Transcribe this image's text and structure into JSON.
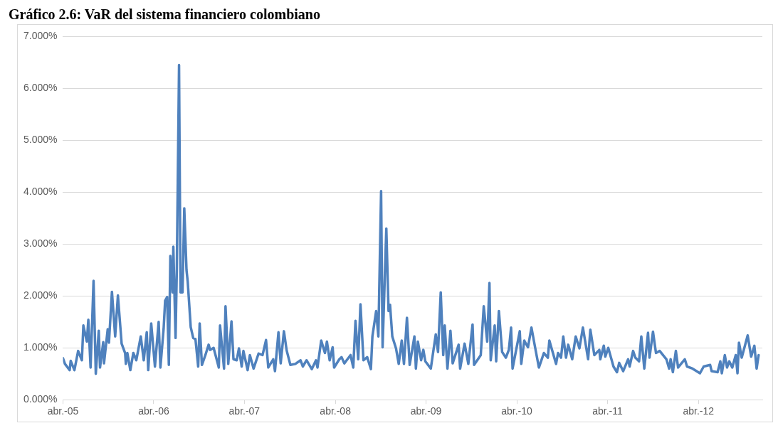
{
  "chart_data": {
    "type": "line",
    "title": "Gráfico 2.6: VaR del sistema financiero colombiano",
    "series": [
      {
        "color": "#4f81bd",
        "x": [
          "2005-04-01",
          "2005-04-09",
          "2005-04-28",
          "2005-05-02",
          "2005-05-17",
          "2005-06-01",
          "2005-06-16",
          "2005-06-22",
          "2005-07-06",
          "2005-07-12",
          "2005-07-21",
          "2005-08-02",
          "2005-08-11",
          "2005-08-23",
          "2005-08-28",
          "2005-09-10",
          "2005-09-13",
          "2005-09-28",
          "2005-10-03",
          "2005-10-15",
          "2005-10-28",
          "2005-11-08",
          "2005-11-23",
          "2005-12-07",
          "2005-12-10",
          "2005-12-16",
          "2005-12-28",
          "2006-01-09",
          "2006-01-21",
          "2006-02-08",
          "2006-02-20",
          "2006-03-04",
          "2006-03-10",
          "2006-03-22",
          "2006-04-06",
          "2006-04-21",
          "2006-04-28",
          "2006-05-11",
          "2006-05-17",
          "2006-05-25",
          "2006-06-01",
          "2006-06-07",
          "2006-06-16",
          "2006-06-19",
          "2006-06-28",
          "2006-07-03",
          "2006-07-12",
          "2006-07-18",
          "2006-07-26",
          "2006-08-02",
          "2006-08-11",
          "2006-08-16",
          "2006-08-28",
          "2006-09-07",
          "2006-09-16",
          "2006-09-27",
          "2006-10-03",
          "2006-10-12",
          "2006-10-26",
          "2006-11-08",
          "2006-11-14",
          "2006-11-28",
          "2006-12-19",
          "2006-12-24",
          "2007-01-09",
          "2007-01-15",
          "2007-01-26",
          "2007-02-08",
          "2007-02-16",
          "2007-03-01",
          "2007-03-10",
          "2007-03-21",
          "2007-03-28",
          "2007-04-14",
          "2007-04-23",
          "2007-05-08",
          "2007-05-28",
          "2007-06-13",
          "2007-06-27",
          "2007-07-06",
          "2007-07-26",
          "2007-08-02",
          "2007-08-16",
          "2007-08-25",
          "2007-09-07",
          "2007-09-18",
          "2007-10-03",
          "2007-10-23",
          "2007-11-13",
          "2007-11-22",
          "2007-12-07",
          "2007-12-28",
          "2008-01-14",
          "2008-01-20",
          "2008-02-04",
          "2008-02-19",
          "2008-02-27",
          "2008-03-09",
          "2008-03-21",
          "2008-03-27",
          "2008-04-17",
          "2008-04-26",
          "2008-05-07",
          "2008-06-01",
          "2008-06-12",
          "2008-06-21",
          "2008-07-02",
          "2008-07-11",
          "2008-07-23",
          "2008-08-07",
          "2008-08-22",
          "2008-08-28",
          "2008-09-12",
          "2008-09-21",
          "2008-10-02",
          "2008-10-08",
          "2008-10-23",
          "2008-11-01",
          "2008-11-07",
          "2008-11-16",
          "2008-12-01",
          "2008-12-12",
          "2008-12-24",
          "2009-01-02",
          "2009-01-14",
          "2009-01-25",
          "2009-02-13",
          "2009-02-19",
          "2009-02-27",
          "2009-03-12",
          "2009-03-21",
          "2009-03-29",
          "2009-04-20",
          "2009-05-10",
          "2009-05-19",
          "2009-05-30",
          "2009-06-09",
          "2009-06-15",
          "2009-06-26",
          "2009-07-08",
          "2009-07-17",
          "2009-08-10",
          "2009-08-16",
          "2009-09-03",
          "2009-09-18",
          "2009-10-05",
          "2009-10-11",
          "2009-11-07",
          "2009-11-19",
          "2009-12-03",
          "2009-12-12",
          "2009-12-17",
          "2010-01-02",
          "2010-01-08",
          "2010-01-19",
          "2010-02-01",
          "2010-02-16",
          "2010-02-28",
          "2010-03-09",
          "2010-03-15",
          "2010-04-13",
          "2010-04-19",
          "2010-05-01",
          "2010-05-16",
          "2010-05-30",
          "2010-06-14",
          "2010-06-29",
          "2010-07-19",
          "2010-08-04",
          "2010-08-10",
          "2010-09-06",
          "2010-09-14",
          "2010-09-26",
          "2010-10-05",
          "2010-10-16",
          "2010-10-25",
          "2010-11-10",
          "2010-11-24",
          "2010-12-09",
          "2010-12-23",
          "2011-01-13",
          "2011-01-22",
          "2011-02-07",
          "2011-02-27",
          "2011-03-03",
          "2011-03-17",
          "2011-03-23",
          "2011-04-04",
          "2011-04-25",
          "2011-05-09",
          "2011-05-18",
          "2011-06-03",
          "2011-06-23",
          "2011-06-29",
          "2011-07-13",
          "2011-07-22",
          "2011-08-06",
          "2011-08-15",
          "2011-08-27",
          "2011-09-11",
          "2011-09-17",
          "2011-10-01",
          "2011-10-13",
          "2011-10-28",
          "2011-11-24",
          "2011-12-05",
          "2011-12-11",
          "2011-12-20",
          "2012-01-01",
          "2012-01-10",
          "2012-02-06",
          "2012-02-15",
          "2012-03-08",
          "2012-04-07",
          "2012-04-22",
          "2012-05-18",
          "2012-05-24",
          "2012-06-17",
          "2012-06-28",
          "2012-07-04",
          "2012-07-16",
          "2012-07-25",
          "2012-08-03",
          "2012-08-15",
          "2012-08-29",
          "2012-09-05",
          "2012-09-11",
          "2012-09-22",
          "2012-10-16",
          "2012-10-30",
          "2012-11-12",
          "2012-11-21",
          "2012-11-29"
        ],
        "values": [
          0.8,
          0.69,
          0.57,
          0.75,
          0.57,
          0.94,
          0.76,
          1.43,
          1.12,
          1.54,
          0.62,
          2.29,
          0.5,
          1.33,
          0.62,
          1.11,
          0.7,
          1.36,
          1.1,
          2.08,
          1.22,
          2.01,
          1.08,
          0.9,
          0.69,
          0.9,
          0.57,
          0.9,
          0.76,
          1.22,
          0.76,
          1.3,
          0.57,
          1.47,
          0.64,
          1.5,
          0.62,
          1.37,
          1.91,
          1.98,
          0.67,
          2.77,
          2.07,
          2.95,
          1.19,
          2.5,
          6.45,
          2.07,
          2.07,
          3.69,
          2.5,
          2.27,
          1.4,
          1.19,
          1.17,
          0.64,
          1.47,
          0.67,
          0.86,
          1.06,
          0.96,
          1.0,
          0.62,
          1.43,
          0.6,
          1.8,
          0.69,
          1.51,
          0.78,
          0.76,
          0.99,
          0.64,
          0.94,
          0.57,
          0.86,
          0.6,
          0.89,
          0.86,
          1.15,
          0.62,
          0.78,
          0.55,
          1.3,
          0.7,
          1.32,
          0.95,
          0.67,
          0.69,
          0.76,
          0.64,
          0.76,
          0.59,
          0.76,
          0.62,
          1.14,
          0.9,
          1.12,
          0.76,
          1.01,
          0.62,
          0.78,
          0.82,
          0.7,
          0.86,
          0.62,
          1.52,
          0.78,
          1.84,
          0.76,
          0.82,
          0.59,
          1.22,
          1.71,
          1.22,
          4.02,
          1.01,
          3.3,
          1.71,
          1.83,
          1.22,
          0.99,
          0.69,
          1.14,
          0.69,
          1.58,
          0.67,
          1.22,
          0.6,
          1.12,
          0.76,
          0.96,
          0.74,
          0.6,
          1.26,
          0.92,
          2.07,
          0.86,
          1.43,
          0.6,
          1.33,
          0.7,
          1.06,
          0.6,
          1.08,
          0.69,
          1.45,
          0.67,
          0.86,
          1.8,
          1.12,
          2.25,
          0.76,
          1.43,
          0.74,
          1.71,
          0.92,
          0.81,
          0.96,
          1.39,
          0.6,
          1.32,
          0.69,
          1.14,
          1.01,
          1.39,
          1.0,
          0.62,
          0.9,
          0.81,
          1.14,
          0.69,
          0.9,
          0.81,
          1.22,
          0.81,
          1.06,
          0.78,
          1.22,
          0.99,
          1.39,
          0.78,
          1.35,
          0.86,
          0.96,
          0.78,
          1.04,
          0.83,
          1.0,
          0.64,
          0.53,
          0.71,
          0.55,
          0.78,
          0.64,
          0.94,
          0.81,
          0.74,
          1.22,
          0.6,
          1.29,
          0.81,
          1.31,
          0.9,
          0.94,
          0.78,
          0.6,
          0.78,
          0.53,
          0.94,
          0.62,
          0.78,
          0.64,
          0.6,
          0.51,
          0.64,
          0.67,
          0.55,
          0.53,
          0.74,
          0.51,
          0.86,
          0.62,
          0.74,
          0.62,
          0.86,
          0.51,
          1.1,
          0.81,
          1.24,
          0.83,
          1.04,
          0.6,
          0.86
        ]
      }
    ],
    "xlim": [
      "2005-04-01",
      "2012-12-14"
    ],
    "xticks": [
      {
        "value": "2005-04-01",
        "label": "abr.-05"
      },
      {
        "value": "2006-04-01",
        "label": "abr.-06"
      },
      {
        "value": "2007-04-01",
        "label": "abr.-07"
      },
      {
        "value": "2008-04-01",
        "label": "abr.-08"
      },
      {
        "value": "2009-04-01",
        "label": "abr.-09"
      },
      {
        "value": "2010-04-01",
        "label": "abr.-10"
      },
      {
        "value": "2011-04-01",
        "label": "abr.-11"
      },
      {
        "value": "2012-04-01",
        "label": "abr.-12"
      }
    ],
    "ylim": [
      0,
      7
    ],
    "yticks": [
      {
        "value": 0,
        "label": "0.000%"
      },
      {
        "value": 1,
        "label": "1.000%"
      },
      {
        "value": 2,
        "label": "2.000%"
      },
      {
        "value": 3,
        "label": "3.000%"
      },
      {
        "value": 4,
        "label": "4.000%"
      },
      {
        "value": 5,
        "label": "5.000%"
      },
      {
        "value": 6,
        "label": "6.000%"
      },
      {
        "value": 7,
        "label": "7.000%"
      }
    ],
    "grid": "y",
    "marker": "none",
    "line_style": "solid"
  }
}
